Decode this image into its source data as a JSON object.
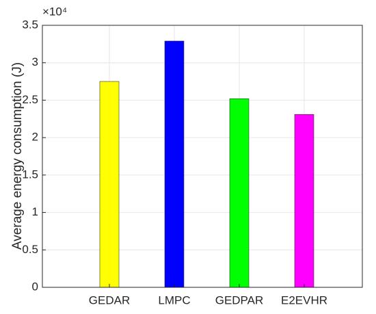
{
  "chart_data": {
    "type": "bar",
    "y_label": "Average energy consumption (J)",
    "y_exponent_label": "×10⁴",
    "categories": [
      "GEDAR",
      "LMPC",
      "GEDPAR",
      "E2EVHR"
    ],
    "values": [
      27500,
      32900,
      25200,
      23100
    ],
    "colors": [
      "#ffff00",
      "#0000ff",
      "#00ff00",
      "#ff00ff"
    ],
    "ylim": [
      0,
      35000
    ],
    "yticks": [
      0,
      {
        "value": 5000,
        "label": "0.5"
      },
      {
        "value": 10000,
        "label": "1"
      },
      {
        "value": 15000,
        "label": "1.5"
      },
      {
        "value": 20000,
        "label": "2"
      },
      {
        "value": 25000,
        "label": "2.5"
      },
      {
        "value": 30000,
        "label": "3"
      },
      {
        "value": 35000,
        "label": "3.5"
      }
    ],
    "grid": true
  }
}
